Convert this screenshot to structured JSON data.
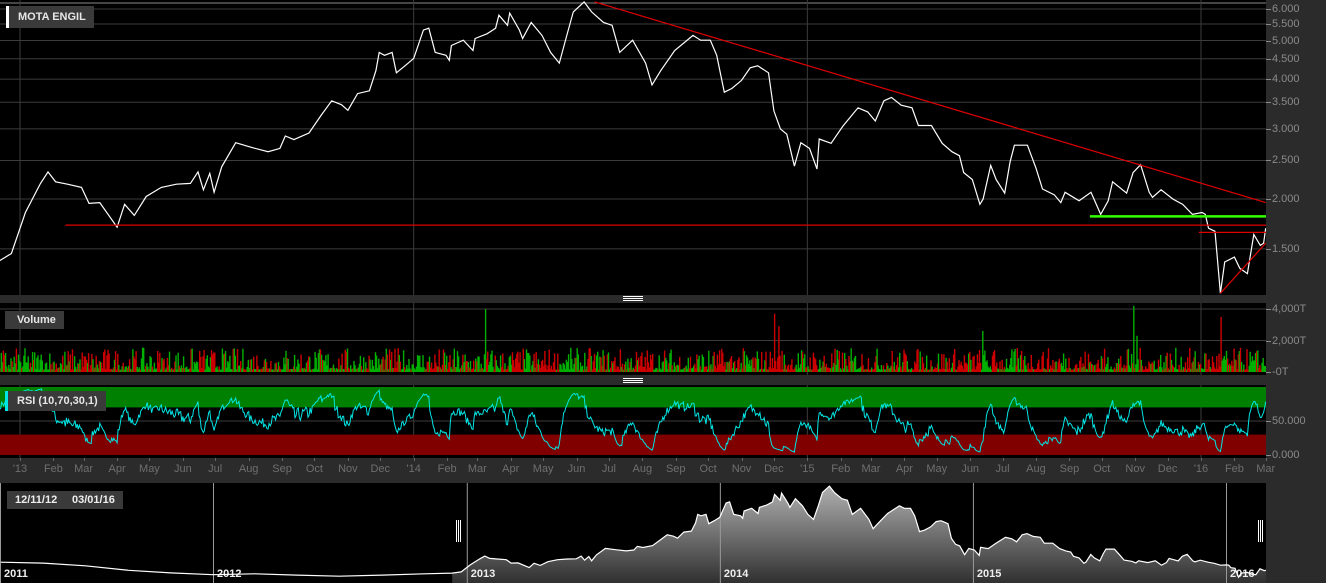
{
  "title": "MOTA ENGIL",
  "volume_label": "Volume",
  "rsi_label": "RSI (10,70,30,1)",
  "colors": {
    "price_line": "#ffffff",
    "trend_red": "#e00000",
    "support_green": "#33ff00",
    "rsi_line": "#00e5e5",
    "rsi_overbought_band": "#008000",
    "rsi_oversold_band": "#800000",
    "volume_up": "#00b000",
    "volume_down": "#cc0000"
  },
  "chart_data": [
    {
      "type": "line",
      "name_shown": "MOTA ENGIL",
      "y_scale": "log",
      "y_ticks": [
        6.0,
        5.5,
        5.0,
        4.5,
        4.0,
        3.5,
        3.0,
        2.5,
        2.0,
        1.5
      ],
      "y_tick_labels": [
        "6.000",
        "5.500",
        "5.000",
        "4.500",
        "4.000",
        "3.500",
        "3.000",
        "2.500",
        "2.000",
        "1.500"
      ],
      "x_range": [
        "2012-12-11",
        "2016-03-01"
      ],
      "x_tick_labels": [
        "'13",
        "Feb",
        "Mar",
        "Apr",
        "May",
        "Jun",
        "Jul",
        "Aug",
        "Sep",
        "Oct",
        "Nov",
        "Dec",
        "'14",
        "Feb",
        "Mar",
        "Apr",
        "May",
        "Jun",
        "Jul",
        "Aug",
        "Sep",
        "Oct",
        "Nov",
        "Dec",
        "'15",
        "Feb",
        "Mar",
        "Apr",
        "May",
        "Jun",
        "Jul",
        "Aug",
        "Sep",
        "Oct",
        "Nov",
        "Dec",
        "'16",
        "Feb",
        "Mar"
      ],
      "grid": true,
      "series": [
        [
          [
            "2012-12-11",
            1.39
          ],
          [
            "2012-12-24",
            1.46
          ],
          [
            "2013-01-06",
            1.85
          ],
          [
            "2013-01-20",
            2.19
          ],
          [
            "2013-01-27",
            2.34
          ],
          [
            "2013-02-03",
            2.21
          ],
          [
            "2013-02-14",
            2.18
          ],
          [
            "2013-02-27",
            2.14
          ],
          [
            "2013-03-06",
            1.95
          ],
          [
            "2013-03-16",
            1.96
          ],
          [
            "2013-04-01",
            1.7
          ],
          [
            "2013-04-08",
            1.94
          ],
          [
            "2013-04-17",
            1.82
          ],
          [
            "2013-04-28",
            2.03
          ],
          [
            "2013-05-12",
            2.14
          ],
          [
            "2013-05-26",
            2.18
          ],
          [
            "2013-06-08",
            2.19
          ],
          [
            "2013-06-15",
            2.34
          ],
          [
            "2013-06-20",
            2.11
          ],
          [
            "2013-06-26",
            2.32
          ],
          [
            "2013-06-30",
            2.08
          ],
          [
            "2013-07-07",
            2.41
          ],
          [
            "2013-07-20",
            2.77
          ],
          [
            "2013-08-05",
            2.69
          ],
          [
            "2013-08-19",
            2.63
          ],
          [
            "2013-08-30",
            2.68
          ],
          [
            "2013-09-04",
            2.88
          ],
          [
            "2013-09-12",
            2.82
          ],
          [
            "2013-09-26",
            2.93
          ],
          [
            "2013-10-07",
            3.24
          ],
          [
            "2013-10-17",
            3.53
          ],
          [
            "2013-10-26",
            3.45
          ],
          [
            "2013-11-01",
            3.34
          ],
          [
            "2013-11-10",
            3.68
          ],
          [
            "2013-11-21",
            3.74
          ],
          [
            "2013-11-27",
            4.2
          ],
          [
            "2013-11-30",
            4.67
          ],
          [
            "2013-12-05",
            4.59
          ],
          [
            "2013-12-12",
            4.67
          ],
          [
            "2013-12-16",
            4.15
          ],
          [
            "2013-12-24",
            4.32
          ],
          [
            "2014-01-01",
            4.51
          ],
          [
            "2014-01-10",
            5.31
          ],
          [
            "2014-01-15",
            5.37
          ],
          [
            "2014-01-21",
            4.67
          ],
          [
            "2014-01-31",
            4.59
          ],
          [
            "2014-02-03",
            4.46
          ],
          [
            "2014-02-05",
            4.86
          ],
          [
            "2014-02-16",
            5.01
          ],
          [
            "2014-02-25",
            4.72
          ],
          [
            "2014-02-27",
            5.06
          ],
          [
            "2014-03-10",
            5.2
          ],
          [
            "2014-03-18",
            5.37
          ],
          [
            "2014-03-21",
            5.79
          ],
          [
            "2014-03-29",
            5.46
          ],
          [
            "2014-03-31",
            5.86
          ],
          [
            "2014-04-09",
            5.31
          ],
          [
            "2014-04-12",
            5.06
          ],
          [
            "2014-04-20",
            5.55
          ],
          [
            "2014-04-30",
            5.15
          ],
          [
            "2014-05-08",
            4.67
          ],
          [
            "2014-05-16",
            4.39
          ],
          [
            "2014-05-23",
            5.15
          ],
          [
            "2014-05-29",
            5.9
          ],
          [
            "2014-06-08",
            6.25
          ],
          [
            "2014-06-15",
            5.9
          ],
          [
            "2014-06-26",
            5.55
          ],
          [
            "2014-07-04",
            5.46
          ],
          [
            "2014-07-11",
            4.67
          ],
          [
            "2014-07-23",
            5.01
          ],
          [
            "2014-08-04",
            4.39
          ],
          [
            "2014-08-10",
            3.87
          ],
          [
            "2014-08-18",
            4.2
          ],
          [
            "2014-08-31",
            4.72
          ],
          [
            "2014-09-17",
            5.15
          ],
          [
            "2014-09-24",
            5.01
          ],
          [
            "2014-10-03",
            5.01
          ],
          [
            "2014-10-09",
            4.59
          ],
          [
            "2014-10-16",
            3.71
          ],
          [
            "2014-10-23",
            3.79
          ],
          [
            "2014-11-01",
            3.97
          ],
          [
            "2014-11-09",
            4.27
          ],
          [
            "2014-11-16",
            4.32
          ],
          [
            "2014-11-26",
            4.15
          ],
          [
            "2014-12-01",
            3.33
          ],
          [
            "2014-12-07",
            3.0
          ],
          [
            "2014-12-13",
            2.91
          ],
          [
            "2014-12-20",
            2.42
          ],
          [
            "2014-12-26",
            2.77
          ],
          [
            "2015-01-03",
            2.68
          ],
          [
            "2015-01-10",
            2.38
          ],
          [
            "2015-01-12",
            2.83
          ],
          [
            "2015-01-23",
            2.76
          ],
          [
            "2015-02-03",
            3.05
          ],
          [
            "2015-02-17",
            3.39
          ],
          [
            "2015-02-26",
            3.31
          ],
          [
            "2015-03-05",
            3.14
          ],
          [
            "2015-03-13",
            3.53
          ],
          [
            "2015-03-20",
            3.6
          ],
          [
            "2015-03-29",
            3.44
          ],
          [
            "2015-04-08",
            3.39
          ],
          [
            "2015-04-14",
            3.06
          ],
          [
            "2015-04-26",
            3.06
          ],
          [
            "2015-05-06",
            2.76
          ],
          [
            "2015-05-15",
            2.63
          ],
          [
            "2015-05-22",
            2.57
          ],
          [
            "2015-05-26",
            2.33
          ],
          [
            "2015-06-03",
            2.24
          ],
          [
            "2015-06-10",
            1.94
          ],
          [
            "2015-06-13",
            2.0
          ],
          [
            "2015-06-20",
            2.43
          ],
          [
            "2015-06-25",
            2.24
          ],
          [
            "2015-07-03",
            2.07
          ],
          [
            "2015-07-08",
            2.48
          ],
          [
            "2015-07-12",
            2.73
          ],
          [
            "2015-07-24",
            2.73
          ],
          [
            "2015-08-01",
            2.39
          ],
          [
            "2015-08-07",
            2.12
          ],
          [
            "2015-08-18",
            2.05
          ],
          [
            "2015-08-24",
            1.96
          ],
          [
            "2015-08-28",
            2.08
          ],
          [
            "2015-09-10",
            1.98
          ],
          [
            "2015-09-21",
            2.08
          ],
          [
            "2015-09-30",
            1.83
          ],
          [
            "2015-10-07",
            1.98
          ],
          [
            "2015-10-11",
            2.21
          ],
          [
            "2015-10-24",
            2.07
          ],
          [
            "2015-10-30",
            2.33
          ],
          [
            "2015-11-06",
            2.44
          ],
          [
            "2015-11-14",
            2.08
          ],
          [
            "2015-11-17",
            2.02
          ],
          [
            "2015-11-25",
            2.11
          ],
          [
            "2015-12-06",
            2.0
          ],
          [
            "2015-12-15",
            1.94
          ],
          [
            "2015-12-24",
            1.83
          ],
          [
            "2016-01-02",
            1.85
          ],
          [
            "2016-01-05",
            1.83
          ],
          [
            "2016-01-08",
            1.69
          ],
          [
            "2016-01-14",
            1.66
          ],
          [
            "2016-01-19",
            1.16
          ],
          [
            "2016-01-23",
            1.39
          ],
          [
            "2016-02-01",
            1.43
          ],
          [
            "2016-02-06",
            1.34
          ],
          [
            "2016-02-13",
            1.3
          ],
          [
            "2016-02-19",
            1.63
          ],
          [
            "2016-02-25",
            1.53
          ],
          [
            "2016-02-28",
            1.55
          ],
          [
            "2016-03-01",
            1.69
          ]
        ]
      ],
      "annotations": [
        {
          "type": "trendline",
          "color": "red",
          "from": [
            "2014-06-18",
            6.25
          ],
          "to": [
            "2016-03-01",
            1.96
          ]
        },
        {
          "type": "horizontal",
          "color": "red",
          "from_date": "2013-02-12",
          "price": 1.72
        },
        {
          "type": "horizontal",
          "color": "green",
          "from_date": "2015-09-20",
          "price": 1.81
        },
        {
          "type": "horizontal",
          "color": "red",
          "from_date": "2015-12-30",
          "price": 1.65
        },
        {
          "type": "trendline",
          "color": "red",
          "from": [
            "2016-01-19",
            1.16
          ],
          "to": [
            "2016-03-01",
            1.55
          ]
        }
      ]
    },
    {
      "type": "bar",
      "title": "Volume",
      "y_tick_labels": [
        "4,000T",
        "2,000T",
        "-0T"
      ],
      "y_ticks": [
        4000,
        2000,
        0
      ],
      "notable_bars": [
        [
          "2014-03-08",
          4000
        ],
        [
          "2014-12-01",
          3700
        ],
        [
          "2014-12-05",
          2900
        ],
        [
          "2015-06-12",
          2600
        ],
        [
          "2015-10-30",
          4200
        ],
        [
          "2015-11-02",
          2300
        ],
        [
          "2016-01-19",
          3500
        ]
      ]
    },
    {
      "type": "line",
      "title": "RSI (10,70,30,1)",
      "y_ticks": [
        50,
        0
      ],
      "y_tick_labels": [
        "50.000",
        "0.000"
      ],
      "bands": {
        "overbought": [
          70,
          100
        ],
        "oversold": [
          0,
          30
        ]
      }
    },
    {
      "type": "area",
      "role": "navigator",
      "year_labels": [
        "2011",
        "2012",
        "2013",
        "2014",
        "2015",
        "2016"
      ],
      "selection": [
        "12/11/12",
        "03/01/16"
      ],
      "history": [
        [
          "2011-03-01",
          2.0
        ],
        [
          "2011-05-01",
          1.95
        ],
        [
          "2011-07-01",
          1.8
        ],
        [
          "2011-09-01",
          1.55
        ],
        [
          "2011-11-01",
          1.4
        ],
        [
          "2012-01-01",
          1.3
        ],
        [
          "2012-03-01",
          1.35
        ],
        [
          "2012-05-01",
          1.28
        ],
        [
          "2012-07-01",
          1.22
        ],
        [
          "2012-09-01",
          1.28
        ],
        [
          "2012-11-01",
          1.35
        ]
      ]
    }
  ]
}
